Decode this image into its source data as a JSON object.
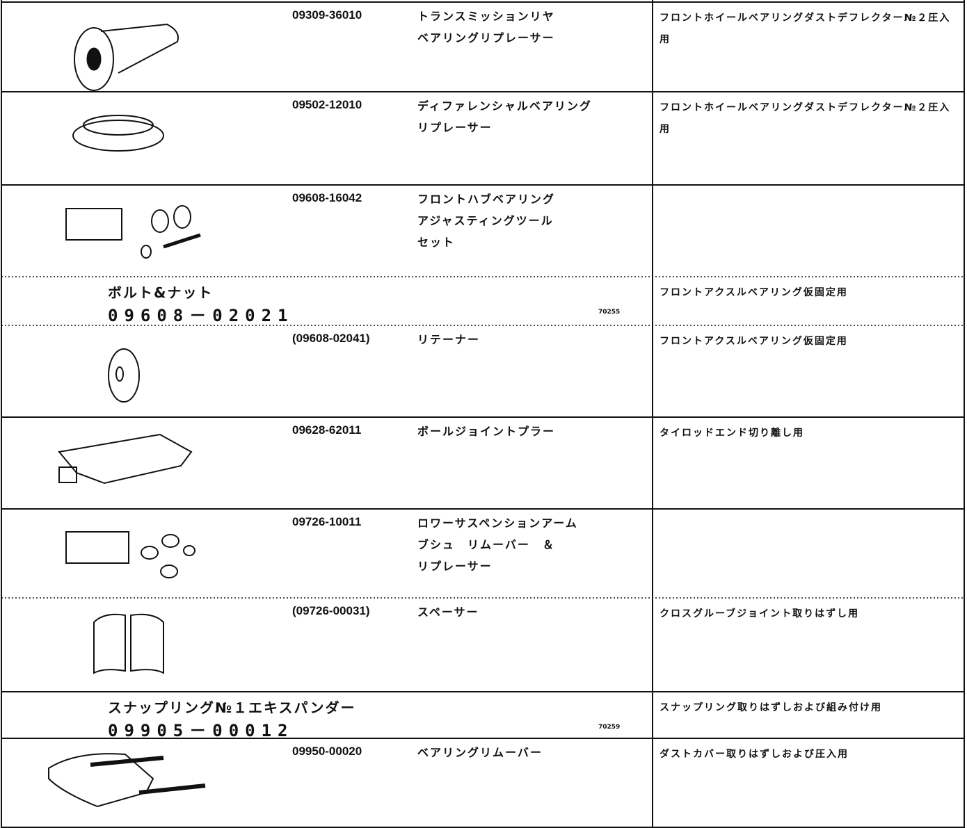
{
  "rows": [
    {
      "part_number": "09309-36010",
      "name": [
        "トランスミッションリヤ",
        "ベアリングリプレーサー"
      ],
      "use": "フロントホイールベアリングダストデフレクター№２圧入用"
    },
    {
      "part_number": "09502-12010",
      "name": [
        "ディファレンシャルベアリング",
        "リプレーサー"
      ],
      "use": "フロントホイールベアリングダストデフレクター№２圧入用"
    },
    {
      "part_number": "09608-16042",
      "name": [
        "フロントハブベアリング",
        "アジャスティングツール",
        "セット"
      ]
    },
    {
      "label": "ボルト&ナット",
      "part_number": "09608－02021",
      "code": "70255",
      "use": "フロントアクスルベアリング仮固定用"
    },
    {
      "part_number": "(09608-02041)",
      "name": [
        "リテーナー"
      ],
      "use": "フロントアクスルベアリング仮固定用"
    },
    {
      "part_number": "09628-62011",
      "name": [
        "ボールジョイントプラー"
      ],
      "use": "タイロッドエンド切り離し用"
    },
    {
      "part_number": "09726-10011",
      "name": [
        "ロワーサスペンションアーム",
        "ブシュ　リムーバー　＆",
        "リプレーサー"
      ]
    },
    {
      "part_number": "(09726-00031)",
      "name": [
        "スペーサー"
      ],
      "use": "クロスグルーブジョイント取りはずし用"
    },
    {
      "label": "スナップリング№１エキスパンダー",
      "part_number": "09905－00012",
      "code": "70259",
      "use": "スナップリング取りはずしおよび組み付け用"
    },
    {
      "part_number": "09950-00020",
      "name": [
        "ベアリングリムーバー"
      ],
      "use": "ダストカバー取りはずしおよび圧入用"
    }
  ]
}
